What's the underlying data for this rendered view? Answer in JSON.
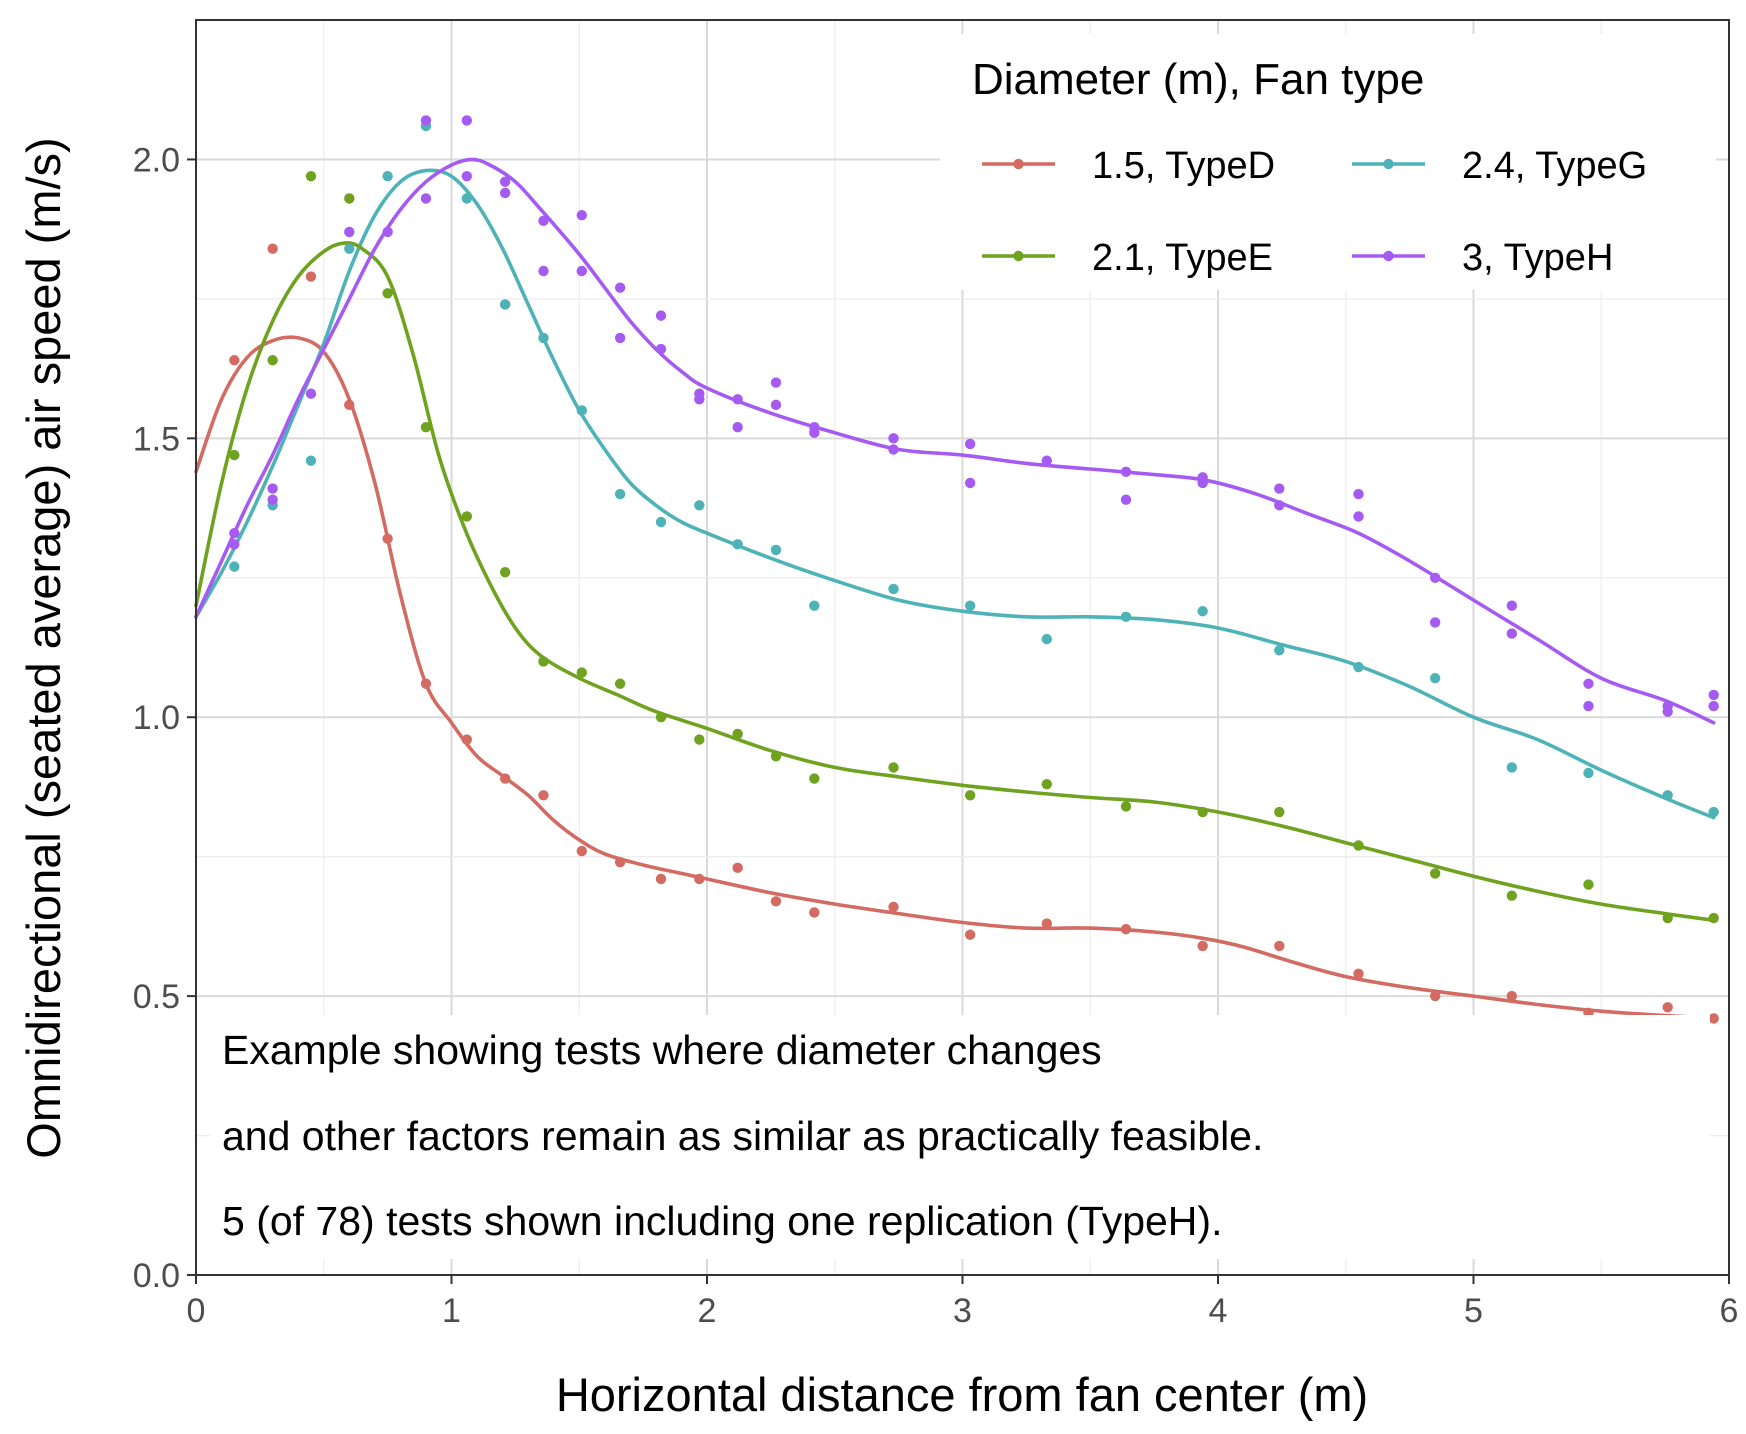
{
  "chart_data": {
    "type": "line",
    "xlabel": "Horizontal distance from fan center (m)",
    "ylabel": "Omnidirectional (seated average) air speed (m/s)",
    "xlim": [
      0,
      6
    ],
    "ylim": [
      0,
      2.25
    ],
    "x_ticks": [
      "0",
      "1",
      "2",
      "3",
      "4",
      "5",
      "6"
    ],
    "y_ticks": [
      "0.0",
      "0.5",
      "1.0",
      "1.5",
      "2.0"
    ],
    "grid": true,
    "legend": {
      "title": "Diameter (m), Fan type",
      "placement": "top-right",
      "columns": 2
    },
    "annotation": [
      "Example showing tests where diameter changes",
      "and other factors remain as similar as practically feasible.",
      "5 (of 78) tests shown including one replication (TypeH)."
    ],
    "series": [
      {
        "name": "1.5, TypeD",
        "color": "#d36b63",
        "points": [
          [
            0.15,
            1.64
          ],
          [
            0.3,
            1.84
          ],
          [
            0.45,
            1.79
          ],
          [
            0.6,
            1.56
          ],
          [
            0.75,
            1.32
          ],
          [
            0.9,
            1.06
          ],
          [
            1.06,
            0.96
          ],
          [
            1.21,
            0.89
          ],
          [
            1.36,
            0.86
          ],
          [
            1.51,
            0.76
          ],
          [
            1.66,
            0.74
          ],
          [
            1.82,
            0.71
          ],
          [
            1.97,
            0.71
          ],
          [
            2.12,
            0.73
          ],
          [
            2.27,
            0.67
          ],
          [
            2.42,
            0.65
          ],
          [
            2.73,
            0.66
          ],
          [
            3.03,
            0.61
          ],
          [
            3.33,
            0.63
          ],
          [
            3.64,
            0.62
          ],
          [
            3.94,
            0.59
          ],
          [
            4.24,
            0.59
          ],
          [
            4.55,
            0.54
          ],
          [
            4.85,
            0.5
          ],
          [
            5.15,
            0.5
          ],
          [
            5.45,
            0.47
          ],
          [
            5.76,
            0.48
          ],
          [
            5.94,
            0.46
          ]
        ],
        "smooth": [
          [
            0,
            1.44
          ],
          [
            0.1,
            1.57
          ],
          [
            0.2,
            1.645
          ],
          [
            0.3,
            1.675
          ],
          [
            0.4,
            1.68
          ],
          [
            0.5,
            1.655
          ],
          [
            0.6,
            1.57
          ],
          [
            0.7,
            1.42
          ],
          [
            0.8,
            1.22
          ],
          [
            0.9,
            1.06
          ],
          [
            1.0,
            0.99
          ],
          [
            1.1,
            0.93
          ],
          [
            1.2,
            0.895
          ],
          [
            1.3,
            0.86
          ],
          [
            1.4,
            0.815
          ],
          [
            1.5,
            0.78
          ],
          [
            1.6,
            0.755
          ],
          [
            1.75,
            0.735
          ],
          [
            1.9,
            0.72
          ],
          [
            2.0,
            0.71
          ],
          [
            2.25,
            0.685
          ],
          [
            2.5,
            0.665
          ],
          [
            2.75,
            0.648
          ],
          [
            3.0,
            0.632
          ],
          [
            3.25,
            0.622
          ],
          [
            3.5,
            0.622
          ],
          [
            3.75,
            0.615
          ],
          [
            3.95,
            0.603
          ],
          [
            4.1,
            0.588
          ],
          [
            4.3,
            0.56
          ],
          [
            4.5,
            0.535
          ],
          [
            4.75,
            0.515
          ],
          [
            5.0,
            0.5
          ],
          [
            5.25,
            0.485
          ],
          [
            5.5,
            0.473
          ],
          [
            5.75,
            0.465
          ],
          [
            5.94,
            0.461
          ]
        ]
      },
      {
        "name": "2.4, TypeG",
        "color": "#4db3b7",
        "points": [
          [
            0.15,
            1.27
          ],
          [
            0.3,
            1.38
          ],
          [
            0.45,
            1.46
          ],
          [
            0.6,
            1.84
          ],
          [
            0.75,
            1.97
          ],
          [
            0.9,
            2.06
          ],
          [
            1.06,
            1.93
          ],
          [
            1.21,
            1.74
          ],
          [
            1.36,
            1.68
          ],
          [
            1.51,
            1.55
          ],
          [
            1.66,
            1.4
          ],
          [
            1.82,
            1.35
          ],
          [
            1.97,
            1.38
          ],
          [
            2.12,
            1.31
          ],
          [
            2.27,
            1.3
          ],
          [
            2.42,
            1.2
          ],
          [
            2.73,
            1.23
          ],
          [
            3.03,
            1.2
          ],
          [
            3.33,
            1.14
          ],
          [
            3.64,
            1.18
          ],
          [
            3.94,
            1.19
          ],
          [
            4.24,
            1.12
          ],
          [
            4.55,
            1.09
          ],
          [
            4.85,
            1.07
          ],
          [
            5.15,
            0.91
          ],
          [
            5.45,
            0.9
          ],
          [
            5.76,
            0.86
          ],
          [
            5.94,
            0.83
          ]
        ],
        "smooth": [
          [
            0,
            1.18
          ],
          [
            0.1,
            1.26
          ],
          [
            0.2,
            1.35
          ],
          [
            0.3,
            1.45
          ],
          [
            0.4,
            1.56
          ],
          [
            0.5,
            1.67
          ],
          [
            0.6,
            1.8
          ],
          [
            0.7,
            1.9
          ],
          [
            0.8,
            1.96
          ],
          [
            0.9,
            1.98
          ],
          [
            1.0,
            1.97
          ],
          [
            1.1,
            1.92
          ],
          [
            1.2,
            1.84
          ],
          [
            1.3,
            1.74
          ],
          [
            1.4,
            1.64
          ],
          [
            1.5,
            1.55
          ],
          [
            1.6,
            1.48
          ],
          [
            1.7,
            1.42
          ],
          [
            1.8,
            1.38
          ],
          [
            1.9,
            1.35
          ],
          [
            2.0,
            1.33
          ],
          [
            2.25,
            1.285
          ],
          [
            2.5,
            1.245
          ],
          [
            2.75,
            1.21
          ],
          [
            3.0,
            1.19
          ],
          [
            3.25,
            1.18
          ],
          [
            3.5,
            1.18
          ],
          [
            3.75,
            1.175
          ],
          [
            4.0,
            1.16
          ],
          [
            4.25,
            1.13
          ],
          [
            4.5,
            1.1
          ],
          [
            4.75,
            1.055
          ],
          [
            5.0,
            1.0
          ],
          [
            5.25,
            0.96
          ],
          [
            5.5,
            0.905
          ],
          [
            5.75,
            0.855
          ],
          [
            5.94,
            0.82
          ]
        ]
      },
      {
        "name": "2.1, TypeE",
        "color": "#6ea21f",
        "points": [
          [
            0.15,
            1.47
          ],
          [
            0.3,
            1.64
          ],
          [
            0.45,
            1.97
          ],
          [
            0.6,
            1.93
          ],
          [
            0.75,
            1.76
          ],
          [
            0.9,
            1.52
          ],
          [
            1.06,
            1.36
          ],
          [
            1.21,
            1.26
          ],
          [
            1.36,
            1.1
          ],
          [
            1.51,
            1.08
          ],
          [
            1.66,
            1.06
          ],
          [
            1.82,
            1.0
          ],
          [
            1.97,
            0.96
          ],
          [
            2.12,
            0.97
          ],
          [
            2.27,
            0.93
          ],
          [
            2.42,
            0.89
          ],
          [
            2.73,
            0.91
          ],
          [
            3.03,
            0.86
          ],
          [
            3.33,
            0.88
          ],
          [
            3.64,
            0.84
          ],
          [
            3.94,
            0.83
          ],
          [
            4.24,
            0.83
          ],
          [
            4.55,
            0.77
          ],
          [
            4.85,
            0.72
          ],
          [
            5.15,
            0.68
          ],
          [
            5.45,
            0.7
          ],
          [
            5.76,
            0.64
          ],
          [
            5.94,
            0.64
          ]
        ],
        "smooth": [
          [
            0,
            1.2
          ],
          [
            0.1,
            1.42
          ],
          [
            0.2,
            1.59
          ],
          [
            0.3,
            1.71
          ],
          [
            0.4,
            1.79
          ],
          [
            0.5,
            1.835
          ],
          [
            0.58,
            1.85
          ],
          [
            0.65,
            1.84
          ],
          [
            0.75,
            1.79
          ],
          [
            0.85,
            1.65
          ],
          [
            0.95,
            1.47
          ],
          [
            1.05,
            1.34
          ],
          [
            1.15,
            1.24
          ],
          [
            1.25,
            1.16
          ],
          [
            1.35,
            1.11
          ],
          [
            1.5,
            1.07
          ],
          [
            1.65,
            1.04
          ],
          [
            1.8,
            1.01
          ],
          [
            2.0,
            0.98
          ],
          [
            2.25,
            0.94
          ],
          [
            2.5,
            0.91
          ],
          [
            2.75,
            0.893
          ],
          [
            3.0,
            0.878
          ],
          [
            3.25,
            0.866
          ],
          [
            3.5,
            0.856
          ],
          [
            3.75,
            0.848
          ],
          [
            4.0,
            0.83
          ],
          [
            4.25,
            0.805
          ],
          [
            4.5,
            0.775
          ],
          [
            4.75,
            0.745
          ],
          [
            5.0,
            0.715
          ],
          [
            5.25,
            0.688
          ],
          [
            5.5,
            0.665
          ],
          [
            5.75,
            0.648
          ],
          [
            5.94,
            0.636
          ]
        ]
      },
      {
        "name": "3, TypeH",
        "color": "#a55bf2",
        "points": [
          [
            0.15,
            1.31
          ],
          [
            0.15,
            1.33
          ],
          [
            0.3,
            1.39
          ],
          [
            0.3,
            1.41
          ],
          [
            0.45,
            1.58
          ],
          [
            0.6,
            1.87
          ],
          [
            0.75,
            1.87
          ],
          [
            0.9,
            2.07
          ],
          [
            0.9,
            1.93
          ],
          [
            1.06,
            2.07
          ],
          [
            1.06,
            1.97
          ],
          [
            1.21,
            1.96
          ],
          [
            1.21,
            1.94
          ],
          [
            1.36,
            1.89
          ],
          [
            1.36,
            1.8
          ],
          [
            1.51,
            1.9
          ],
          [
            1.51,
            1.8
          ],
          [
            1.66,
            1.77
          ],
          [
            1.66,
            1.68
          ],
          [
            1.82,
            1.72
          ],
          [
            1.82,
            1.66
          ],
          [
            1.97,
            1.58
          ],
          [
            1.97,
            1.57
          ],
          [
            2.12,
            1.57
          ],
          [
            2.12,
            1.52
          ],
          [
            2.27,
            1.6
          ],
          [
            2.27,
            1.56
          ],
          [
            2.42,
            1.52
          ],
          [
            2.42,
            1.51
          ],
          [
            2.73,
            1.5
          ],
          [
            2.73,
            1.48
          ],
          [
            3.03,
            1.49
          ],
          [
            3.03,
            1.42
          ],
          [
            3.33,
            1.46
          ],
          [
            3.64,
            1.44
          ],
          [
            3.64,
            1.39
          ],
          [
            3.94,
            1.43
          ],
          [
            3.94,
            1.42
          ],
          [
            4.24,
            1.41
          ],
          [
            4.24,
            1.38
          ],
          [
            4.55,
            1.4
          ],
          [
            4.55,
            1.36
          ],
          [
            4.85,
            1.25
          ],
          [
            4.85,
            1.17
          ],
          [
            5.15,
            1.2
          ],
          [
            5.15,
            1.15
          ],
          [
            5.45,
            1.06
          ],
          [
            5.45,
            1.02
          ],
          [
            5.76,
            1.02
          ],
          [
            5.76,
            1.01
          ],
          [
            5.94,
            1.04
          ],
          [
            5.94,
            1.02
          ]
        ],
        "smooth": [
          [
            0,
            1.18
          ],
          [
            0.1,
            1.28
          ],
          [
            0.2,
            1.38
          ],
          [
            0.3,
            1.47
          ],
          [
            0.4,
            1.57
          ],
          [
            0.5,
            1.66
          ],
          [
            0.6,
            1.75
          ],
          [
            0.7,
            1.84
          ],
          [
            0.8,
            1.91
          ],
          [
            0.9,
            1.96
          ],
          [
            1.0,
            1.99
          ],
          [
            1.08,
            2.0
          ],
          [
            1.15,
            1.99
          ],
          [
            1.25,
            1.96
          ],
          [
            1.35,
            1.91
          ],
          [
            1.5,
            1.83
          ],
          [
            1.6,
            1.77
          ],
          [
            1.7,
            1.71
          ],
          [
            1.8,
            1.66
          ],
          [
            1.9,
            1.62
          ],
          [
            2.0,
            1.59
          ],
          [
            2.25,
            1.545
          ],
          [
            2.5,
            1.51
          ],
          [
            2.75,
            1.48
          ],
          [
            3.0,
            1.47
          ],
          [
            3.25,
            1.455
          ],
          [
            3.5,
            1.445
          ],
          [
            3.75,
            1.435
          ],
          [
            3.95,
            1.425
          ],
          [
            4.15,
            1.4
          ],
          [
            4.35,
            1.365
          ],
          [
            4.55,
            1.33
          ],
          [
            4.75,
            1.28
          ],
          [
            5.0,
            1.21
          ],
          [
            5.25,
            1.14
          ],
          [
            5.5,
            1.07
          ],
          [
            5.75,
            1.03
          ],
          [
            5.94,
            0.99
          ]
        ]
      }
    ]
  }
}
